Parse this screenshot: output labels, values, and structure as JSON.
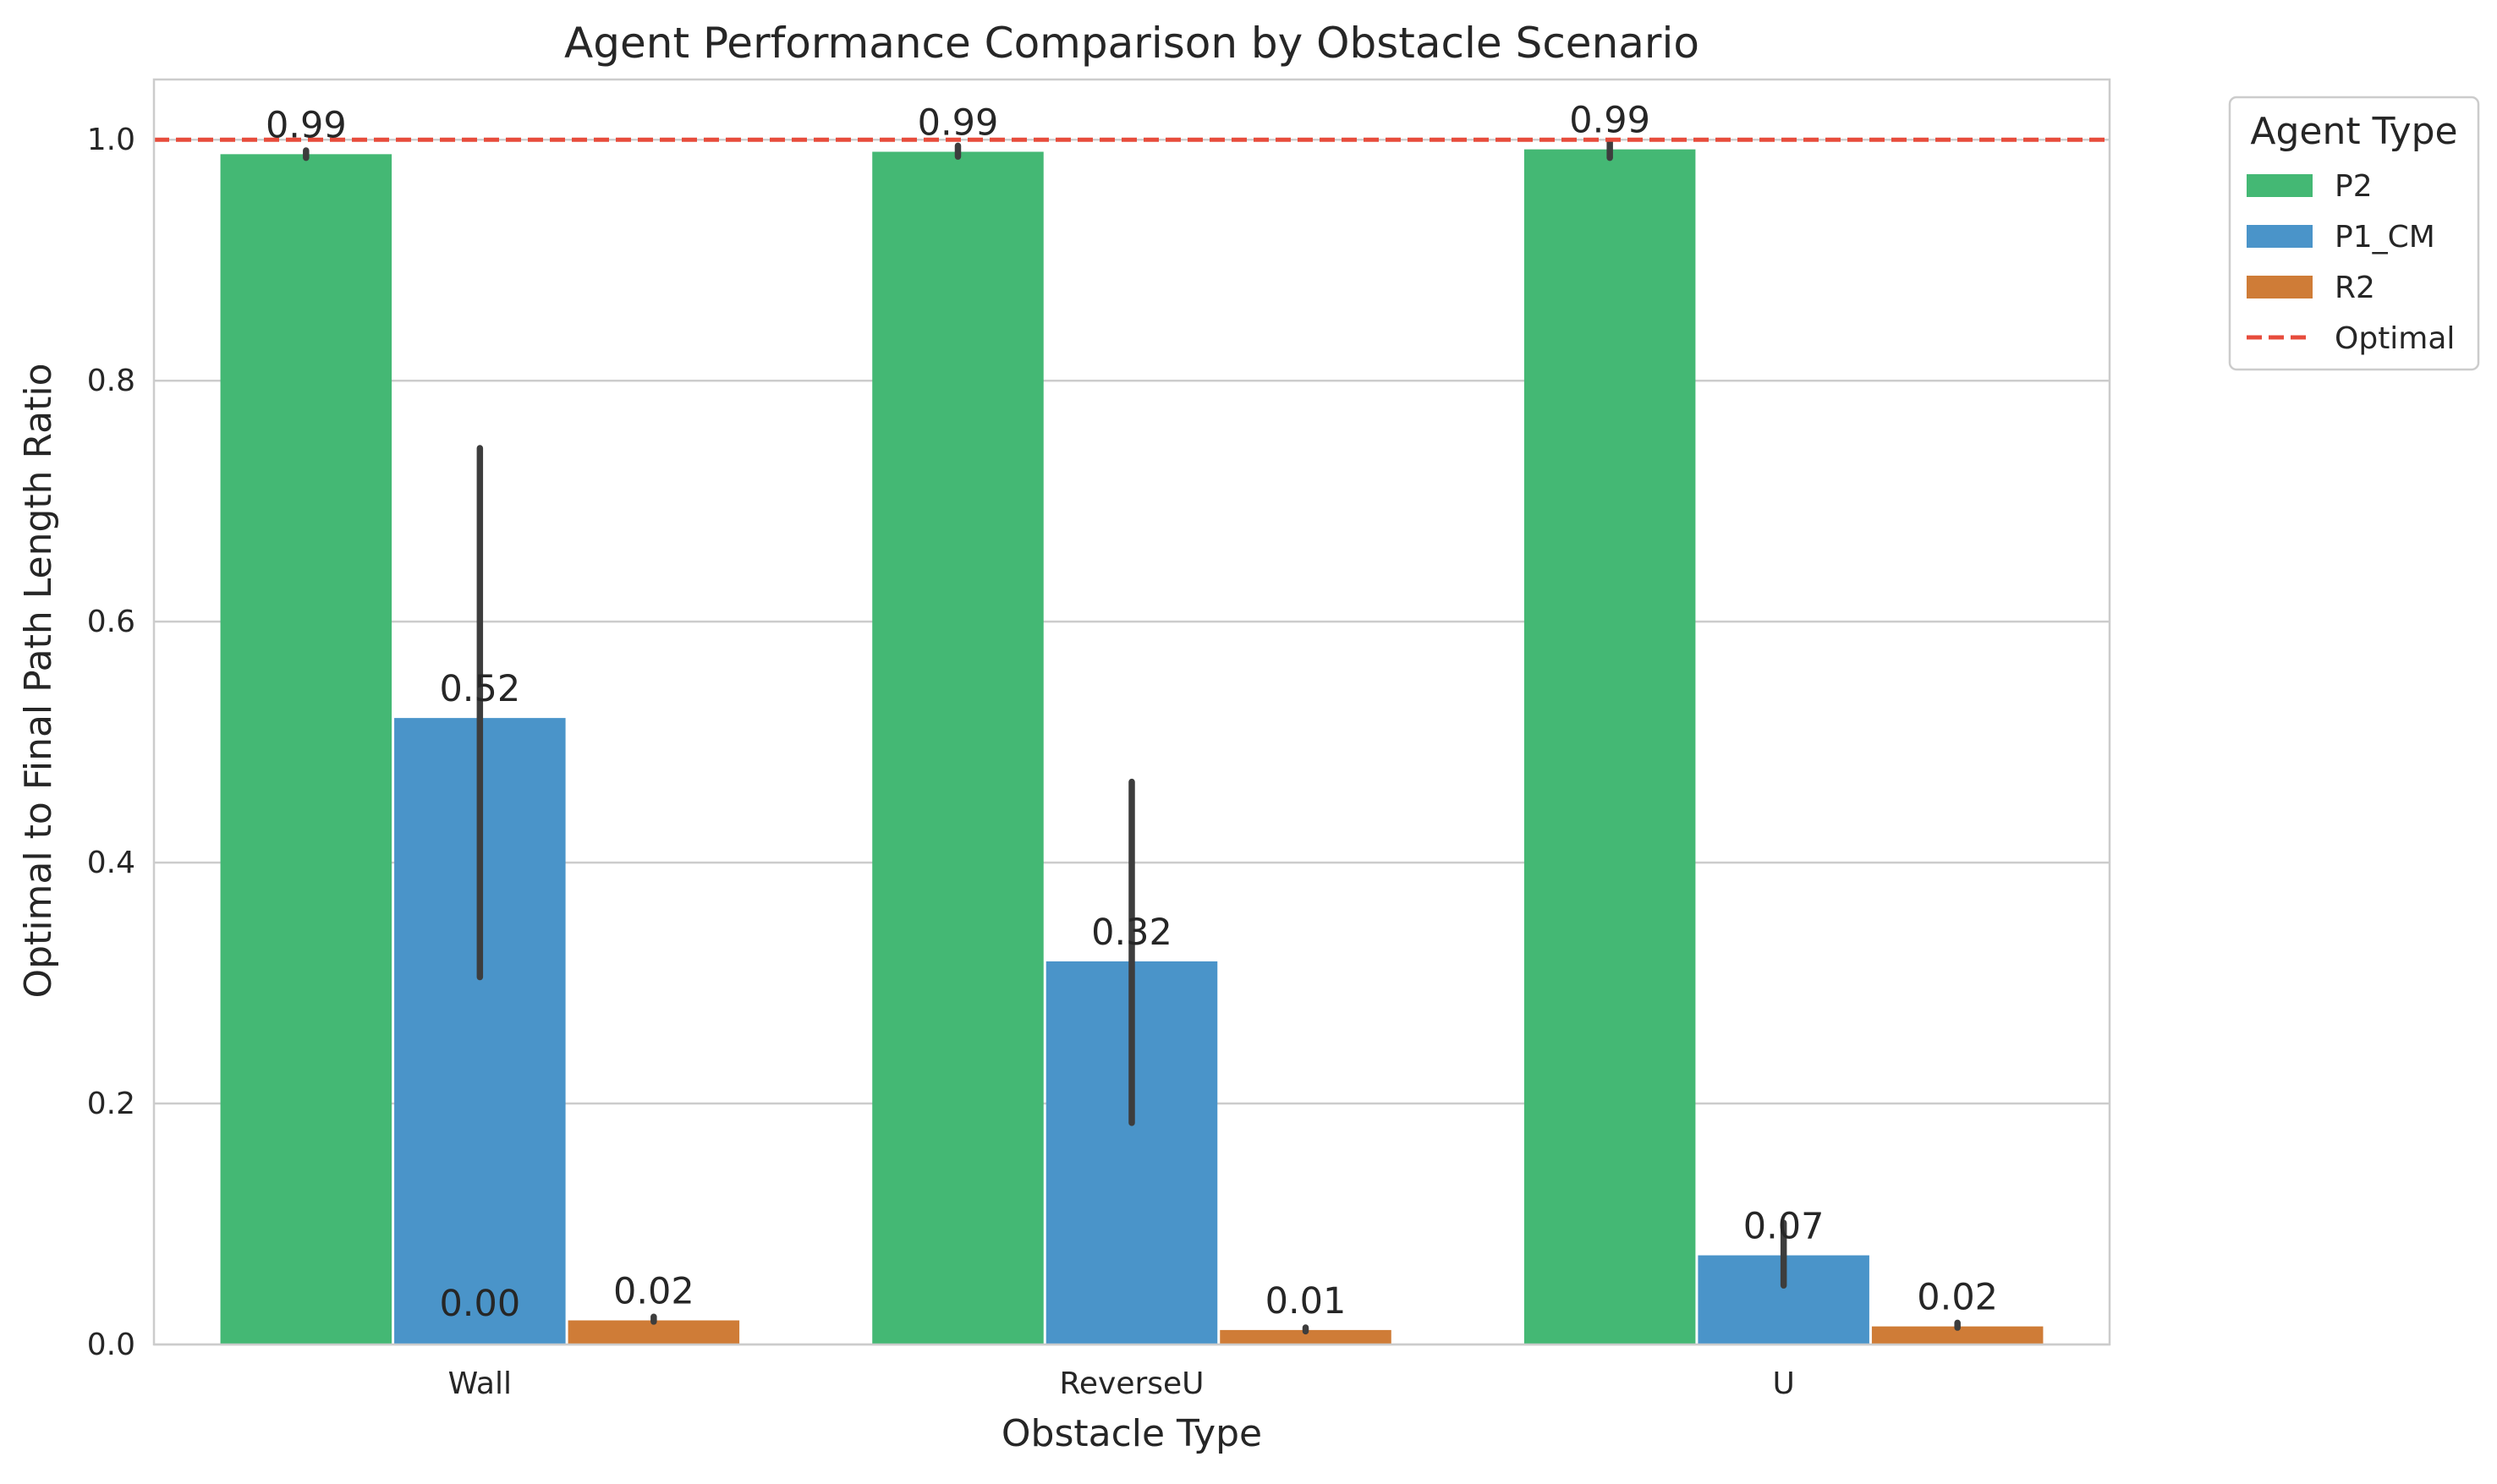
{
  "chart_data": {
    "type": "bar",
    "title": "Agent Performance Comparison by Obstacle Scenario",
    "xlabel": "Obstacle Type",
    "ylabel": "Optimal to Final Path Length Ratio",
    "ylim": [
      0,
      1.05
    ],
    "yticks": [
      0.0,
      0.2,
      0.4,
      0.6,
      0.8,
      1.0
    ],
    "ytick_labels": [
      "0.0",
      "0.2",
      "0.4",
      "0.6",
      "0.8",
      "1.0"
    ],
    "grid": "horizontal",
    "categories": [
      "Wall",
      "ReverseU",
      "U"
    ],
    "series": [
      {
        "name": "P2",
        "color": "#44b874",
        "values": [
          0.988,
          0.99,
          0.992
        ],
        "error_low": [
          0.985,
          0.986,
          0.985
        ],
        "error_high": [
          0.991,
          0.995,
          0.999
        ],
        "labels": [
          "0.99",
          "0.99",
          "0.99"
        ]
      },
      {
        "name": "P1_CM",
        "color": "#4a94c9",
        "values": [
          0.52,
          0.318,
          0.074
        ],
        "error_low": [
          0.305,
          0.184,
          0.049
        ],
        "error_high": [
          0.744,
          0.467,
          0.101
        ],
        "labels": [
          "0.52",
          "0.32",
          "0.07"
        ]
      },
      {
        "name": "R2",
        "color": "#cf7c37",
        "values": [
          0.02,
          0.012,
          0.015
        ],
        "error_low": [
          0.019,
          0.011,
          0.014
        ],
        "error_high": [
          0.023,
          0.014,
          0.018
        ],
        "labels": [
          "0.02",
          "0.01",
          "0.02"
        ]
      }
    ],
    "extra_annotations": [
      {
        "text": "0.00",
        "category": "Wall",
        "series": "P1_CM",
        "y": 0.01
      }
    ],
    "reference_line": {
      "name": "Optimal",
      "y": 1.0,
      "color": "#e74c3c",
      "style": "dashed"
    },
    "legend": {
      "title": "Agent Type",
      "position": "outside-top-right",
      "entries": [
        "P2",
        "P1_CM",
        "R2",
        "Optimal"
      ]
    }
  }
}
